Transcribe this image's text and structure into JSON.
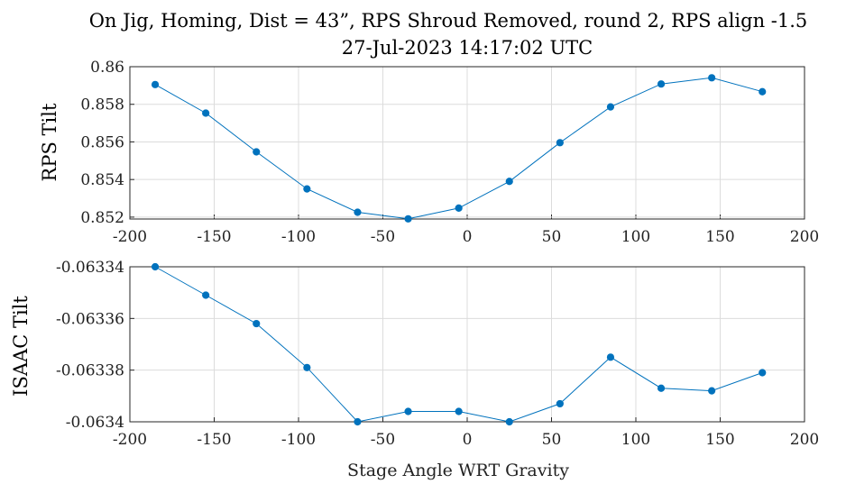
{
  "title_line1": "On Jig, Homing, Dist = 43”, RPS Shroud Removed, round 2, RPS align -1.5",
  "title_line2": "27-Jul-2023 14:17:02 UTC",
  "series_color": "#0072BD",
  "chart_data": [
    {
      "type": "line",
      "ylabel": "RPS Tilt",
      "xlabel": "",
      "xlim": [
        -200,
        200
      ],
      "ylim": [
        0.8519,
        0.86
      ],
      "grid": true,
      "x_ticks": [
        "-200",
        "-150",
        "-100",
        "-50",
        "0",
        "50",
        "100",
        "150",
        "200"
      ],
      "y_ticks": [
        "0.852",
        "0.854",
        "0.856",
        "0.858",
        "0.86"
      ],
      "x": [
        -185,
        -155,
        -125,
        -95,
        -65,
        -35,
        -5,
        25,
        55,
        85,
        115,
        145,
        175
      ],
      "y": [
        0.85905,
        0.85753,
        0.85547,
        0.8535,
        0.85226,
        0.85191,
        0.85248,
        0.8539,
        0.85596,
        0.85786,
        0.85908,
        0.85941,
        0.85867
      ]
    },
    {
      "type": "line",
      "ylabel": "ISAAC Tilt",
      "xlabel": "Stage Angle WRT Gravity",
      "xlim": [
        -200,
        200
      ],
      "ylim": [
        -0.0634,
        -0.06334
      ],
      "grid": true,
      "x_ticks": [
        "-200",
        "-150",
        "-100",
        "-50",
        "0",
        "50",
        "100",
        "150",
        "200"
      ],
      "y_ticks": [
        "-0.0634",
        "-0.06338",
        "-0.06336",
        "-0.06334"
      ],
      "x": [
        -185,
        -155,
        -125,
        -95,
        -65,
        -35,
        -5,
        25,
        55,
        85,
        115,
        145,
        175
      ],
      "y": [
        -0.06334,
        -0.063351,
        -0.063362,
        -0.063379,
        -0.0634,
        -0.063396,
        -0.063396,
        -0.0634,
        -0.063393,
        -0.063375,
        -0.063387,
        -0.063388,
        -0.063381
      ]
    }
  ]
}
